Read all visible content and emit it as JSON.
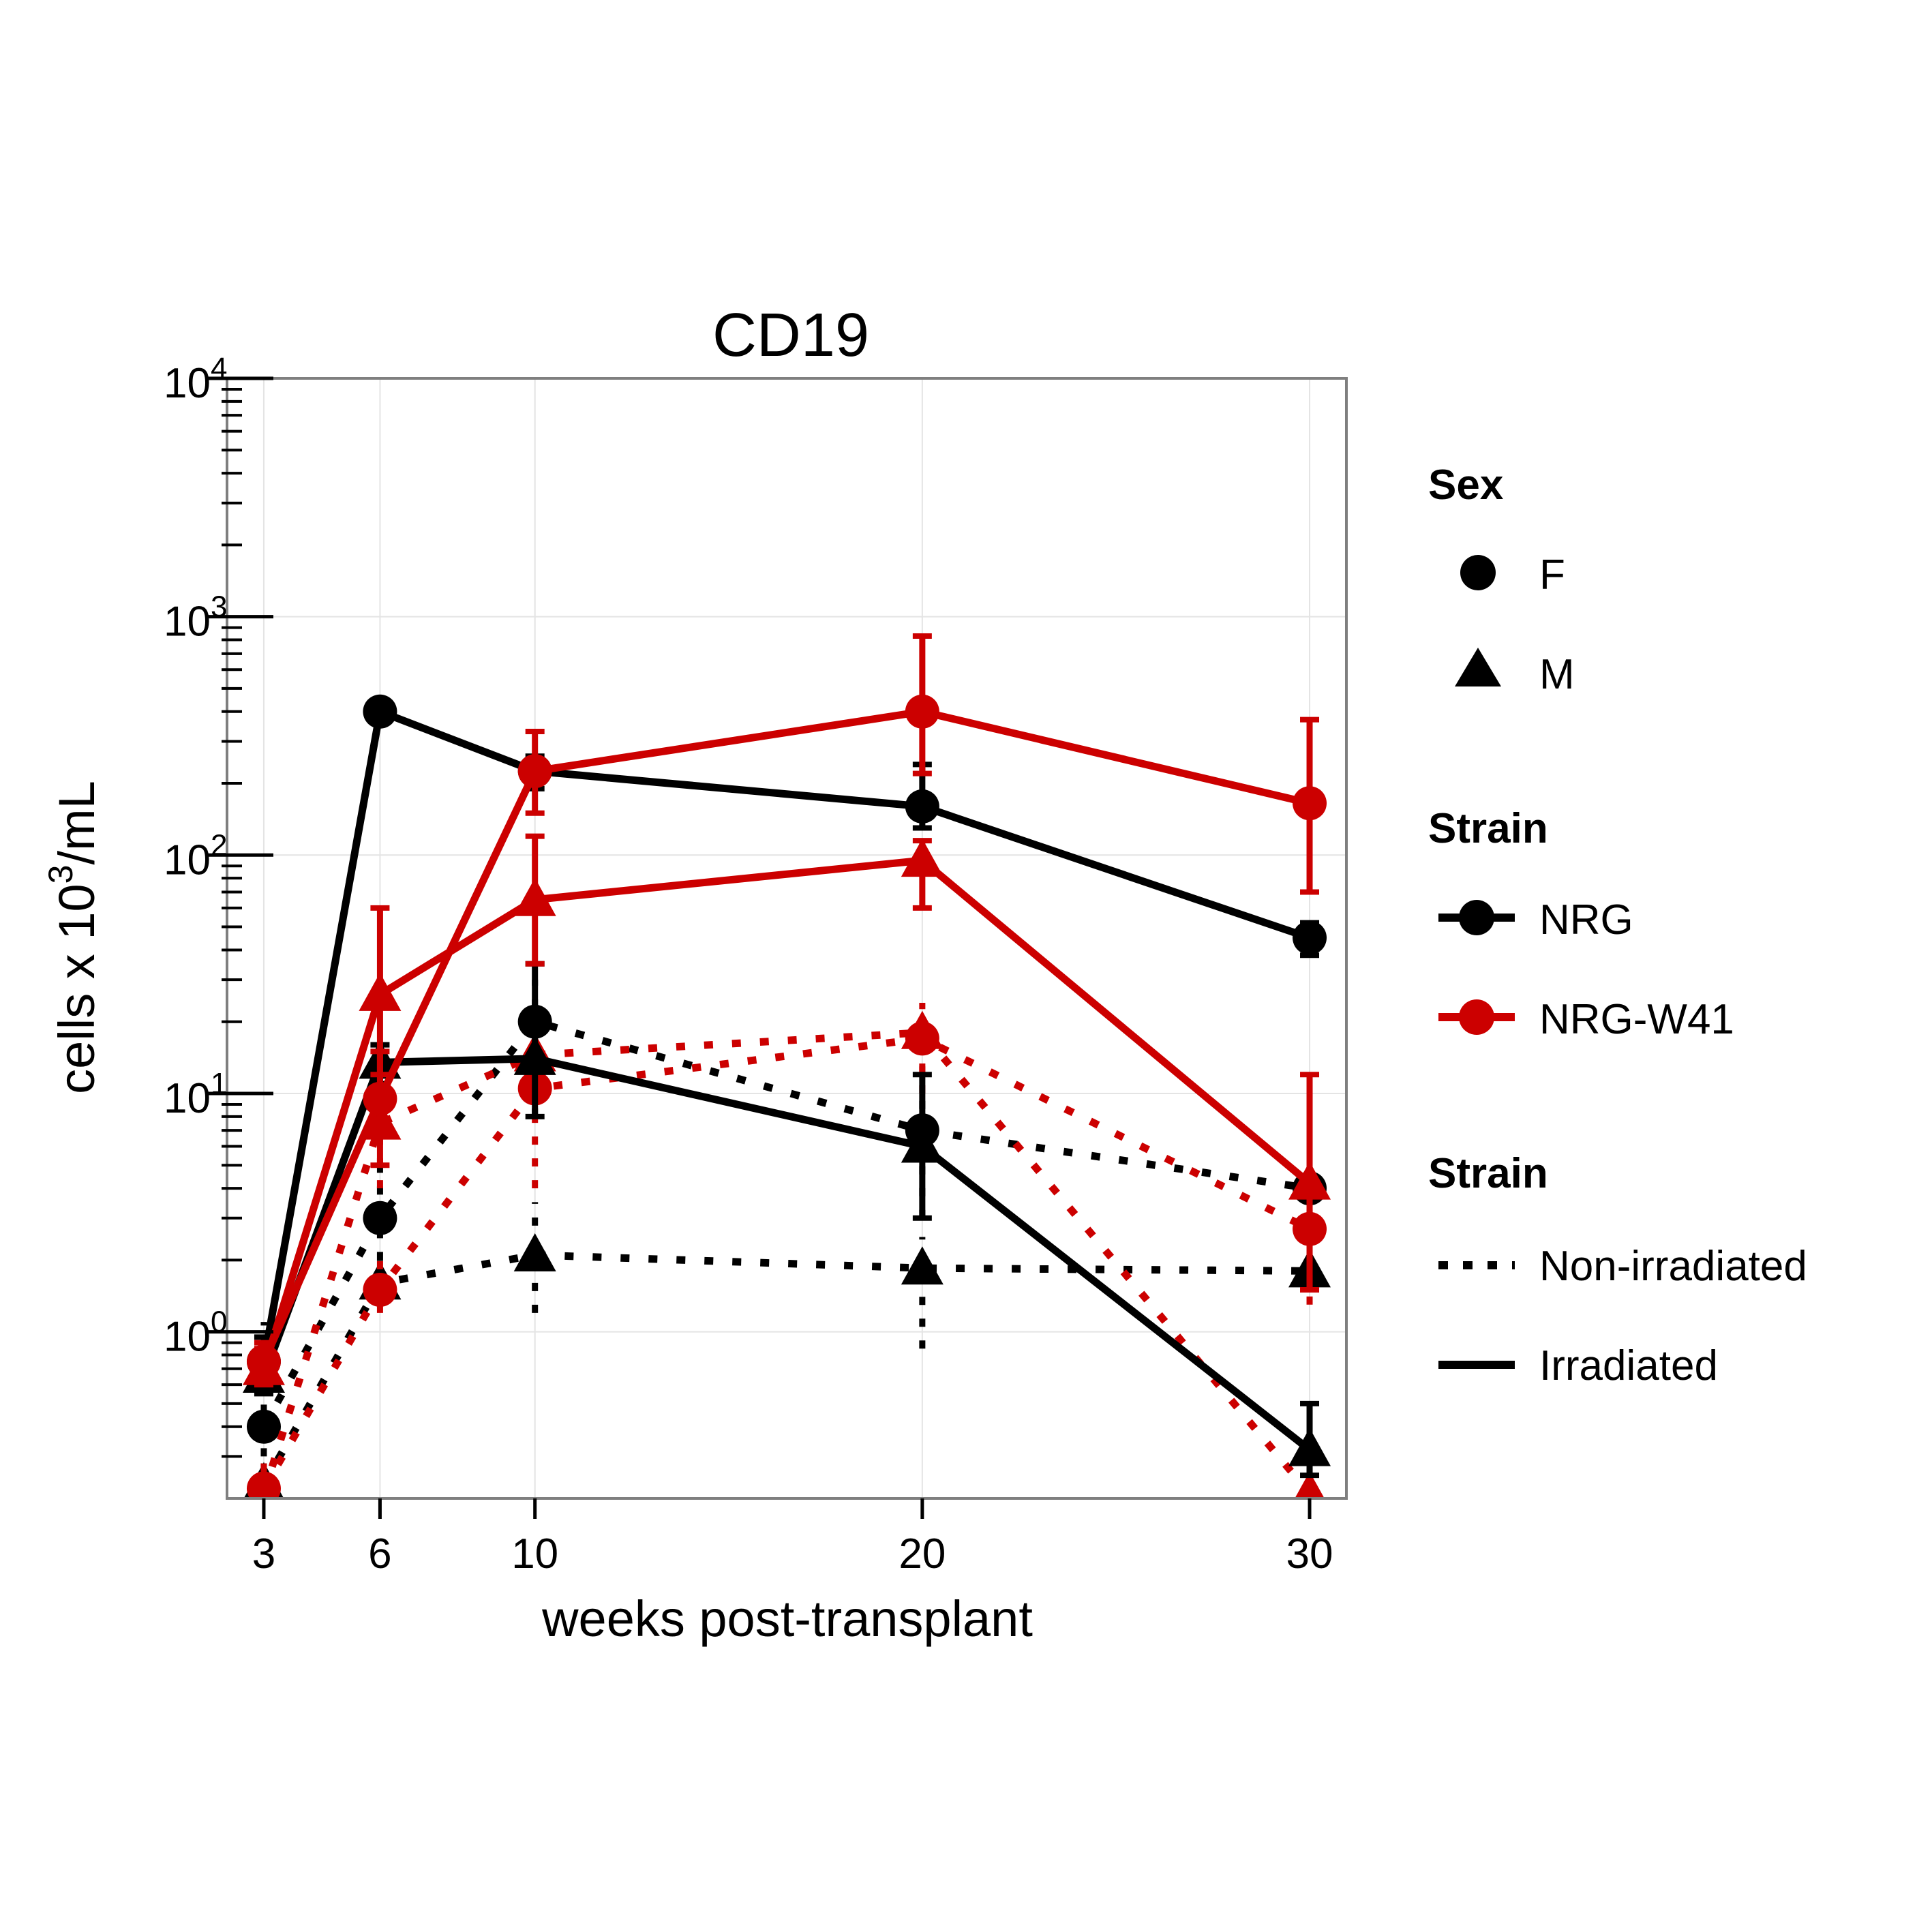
{
  "chart_data": {
    "type": "line",
    "title": "CD19",
    "xlabel": "weeks post-transplant",
    "ylabel": "cells x 10^3/mL",
    "ylabel_parts": {
      "pre": "cells x 10",
      "sup": "3",
      "post": "/mL"
    },
    "x_ticks": [
      "3",
      "6",
      "10",
      "20",
      "30"
    ],
    "x_values": [
      3,
      6,
      10,
      20,
      30
    ],
    "xlim": [
      2.05,
      30.95
    ],
    "y_scale": "log10",
    "ylim": [
      0.2,
      10000
    ],
    "y_ticks": [
      {
        "base": "10",
        "exp": "0",
        "value": 1
      },
      {
        "base": "10",
        "exp": "1",
        "value": 10
      },
      {
        "base": "10",
        "exp": "2",
        "value": 100
      },
      {
        "base": "10",
        "exp": "3",
        "value": 1000
      },
      {
        "base": "10",
        "exp": "4",
        "value": 10000
      }
    ],
    "grid": true,
    "colors": {
      "NRG": "#000000",
      "NRG-W41": "#cc0000",
      "grid": "#e4e4e4",
      "frame": "#7f7f7f"
    },
    "series": [
      {
        "strain": "NRG",
        "sex": "F",
        "treatment": "Irradiated",
        "values": [
          0.75,
          400,
          225,
          160,
          45
        ],
        "err_low": [
          0.6,
          360,
          190,
          130,
          38
        ],
        "err_high": [
          0.95,
          440,
          260,
          240,
          52
        ]
      },
      {
        "strain": "NRG",
        "sex": "M",
        "treatment": "Irradiated",
        "values": [
          0.65,
          13.5,
          14,
          6,
          0.32
        ],
        "err_low": [
          0.55,
          11,
          8,
          3,
          0.25
        ],
        "err_high": [
          0.8,
          16,
          35,
          12,
          0.5
        ]
      },
      {
        "strain": "NRG-W41",
        "sex": "F",
        "treatment": "Irradiated",
        "values": [
          0.75,
          9.5,
          225,
          400,
          165
        ],
        "err_low": [
          0.6,
          5,
          150,
          220,
          70
        ],
        "err_high": [
          0.9,
          15,
          330,
          830,
          370
        ]
      },
      {
        "strain": "NRG-W41",
        "sex": "M",
        "treatment": "Irradiated",
        "values": [
          0.7,
          26,
          65,
          95,
          4.2
        ],
        "err_low": [
          0.6,
          12,
          35,
          60,
          1.5
        ],
        "err_high": [
          0.85,
          60,
          120,
          115,
          12
        ]
      },
      {
        "strain": "NRG",
        "sex": "F",
        "treatment": "Non-irradiated",
        "values": [
          0.4,
          3,
          20,
          7,
          4
        ],
        "err_low": [
          0.3,
          2,
          8,
          3,
          3
        ],
        "err_high": [
          1.1,
          5,
          30,
          10,
          5
        ]
      },
      {
        "strain": "NRG",
        "sex": "M",
        "treatment": "Non-irradiated",
        "values": [
          0.23,
          1.6,
          2.1,
          1.85,
          1.8
        ],
        "err_low": [
          0.21,
          1.3,
          1.2,
          0.85,
          1.5
        ],
        "err_high": [
          0.3,
          2.0,
          3.5,
          2.5,
          2.2
        ]
      },
      {
        "strain": "NRG-W41",
        "sex": "F",
        "treatment": "Non-irradiated",
        "values": [
          0.22,
          1.5,
          10.5,
          17,
          2.7
        ],
        "err_low": [
          0.21,
          1.2,
          4,
          10,
          1.3
        ],
        "err_high": [
          0.3,
          2.0,
          16,
          22,
          4
        ]
      },
      {
        "strain": "NRG-W41",
        "sex": "M",
        "treatment": "Non-irradiated",
        "values": [
          0.21,
          7.5,
          14.5,
          18,
          0.21
        ],
        "err_low": [
          0.2,
          4,
          10,
          12,
          0.2
        ],
        "err_high": [
          0.3,
          12,
          18,
          24,
          0.35
        ]
      }
    ]
  },
  "legend": {
    "sex": {
      "title": "Sex",
      "items": [
        {
          "label": "F",
          "shape": "circle"
        },
        {
          "label": "M",
          "shape": "triangle"
        }
      ]
    },
    "strain_color": {
      "title": "Strain",
      "items": [
        {
          "label": "NRG",
          "color": "#000000"
        },
        {
          "label": "NRG-W41",
          "color": "#cc0000"
        }
      ]
    },
    "strain_line": {
      "title": "Strain",
      "items": [
        {
          "label": "Non-irradiated",
          "linetype": "dotted"
        },
        {
          "label": "Irradiated",
          "linetype": "solid"
        }
      ]
    }
  }
}
